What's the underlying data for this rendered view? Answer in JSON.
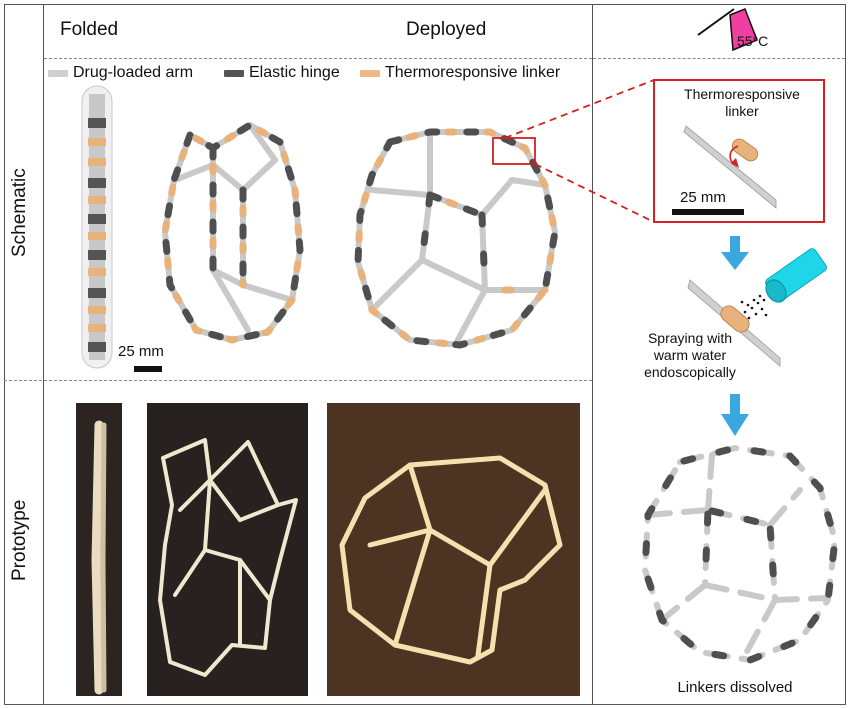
{
  "headers": {
    "folded": "Folded",
    "deployed": "Deployed"
  },
  "temperature": {
    "value": "55",
    "unit": "°C"
  },
  "row_labels": {
    "schematic": "Schematic",
    "prototype": "Prototype"
  },
  "legend": [
    {
      "label": "Drug-loaded arm",
      "color": "#cfcfcf"
    },
    {
      "label": "Elastic hinge",
      "color": "#555555"
    },
    {
      "label": "Thermoresponsive linker",
      "color": "#f2b783"
    }
  ],
  "scale_bars": {
    "schematic": "25 mm",
    "inset": "25 mm"
  },
  "inset": {
    "title": "Thermoresponsive\nlinker"
  },
  "spraying_text": "Spraying with\nwarm water\nendoscopically",
  "dissolved_text": "Linkers dissolved",
  "colors": {
    "arm": "#cfcfcf",
    "hinge": "#4f4f4f",
    "linker": "#e8b27c",
    "arrow": "#3aa8e0",
    "red": "#d42020",
    "pink": "#f03fa0",
    "cyan": "#1fd6e8",
    "photo_dark": "#2a2522",
    "photo_brown": "#4e3422"
  }
}
